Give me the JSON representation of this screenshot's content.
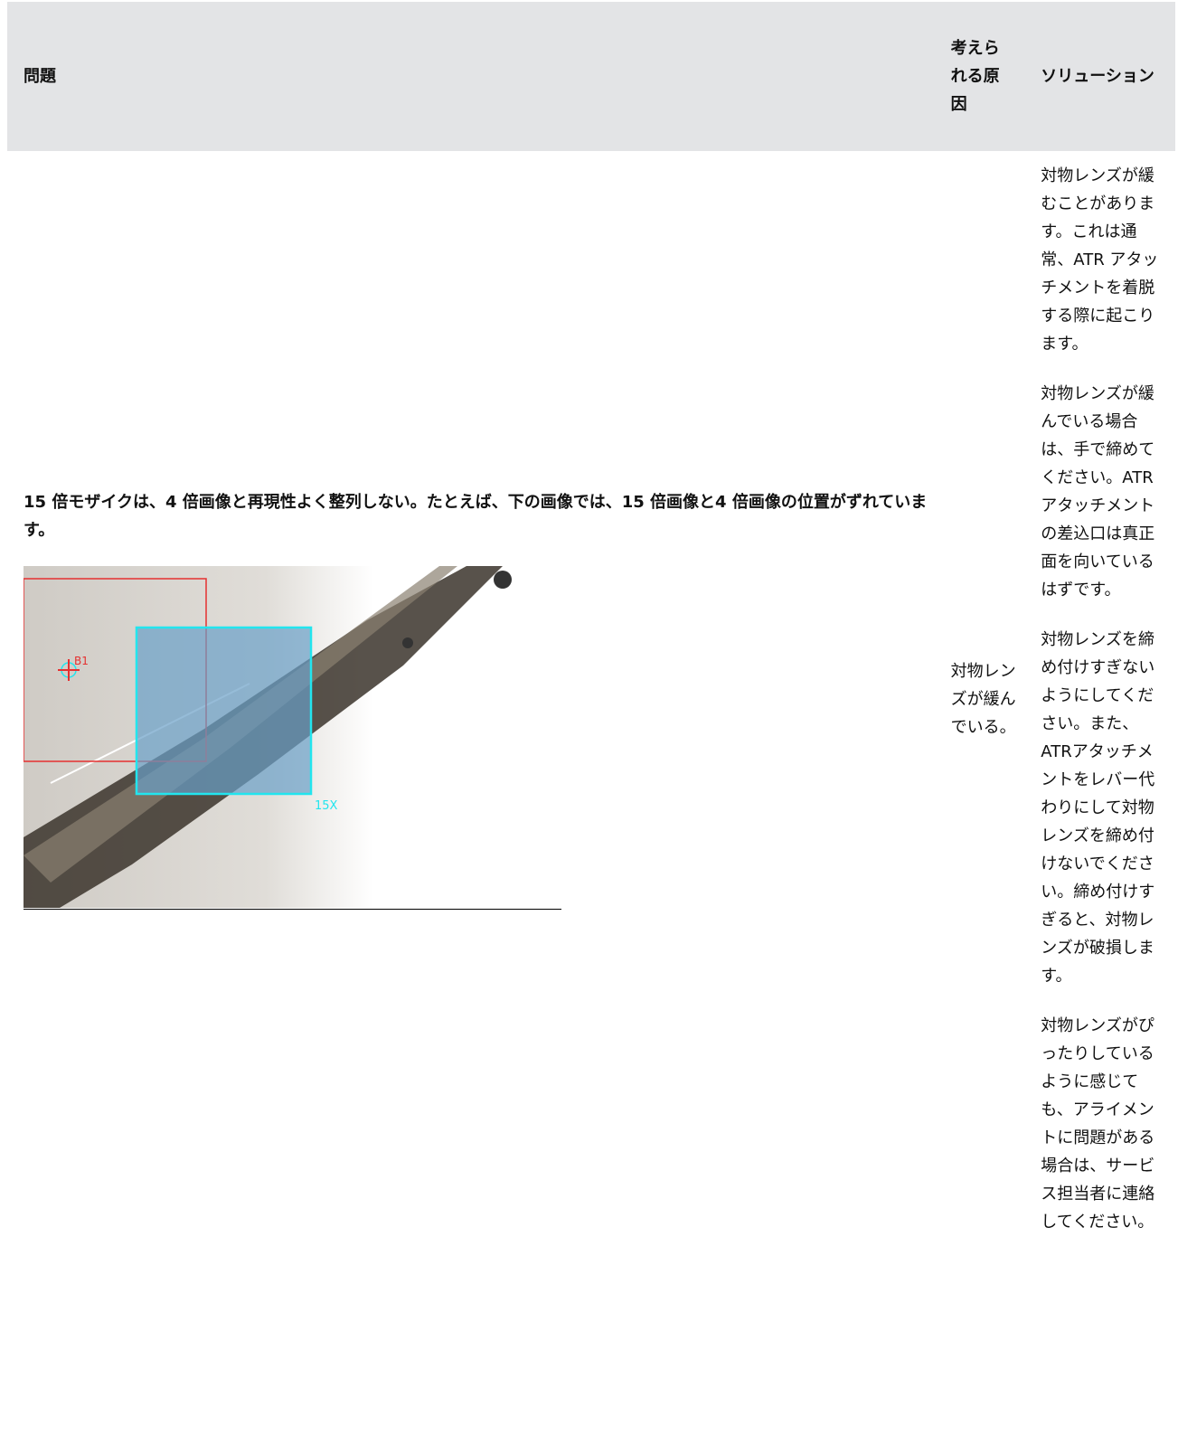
{
  "header": {
    "problem": "問題",
    "cause": "考えられる原因",
    "solution": "ソリューション"
  },
  "rows": [
    {
      "problem": "15 倍モザイクは、4 倍画像と再現性よく整列しない。たとえば、下の画像では、15 倍画像と4 倍画像の位置がずれています。",
      "image": {
        "marker_label": "B1",
        "overlay_label": "15X"
      },
      "cause": "対物レンズが緩んでいる。",
      "solutions": [
        "対物レンズが緩むことがあります。これは通常、ATR アタッチメントを着脱する際に起こります。",
        "対物レンズが緩んでいる場合は、手で締めてください。ATRアタッチメントの差込口は真正面を向いているはずです。",
        "対物レンズを締め付けすぎないようにしてください。また、ATRアタッチメントをレバー代わりにして対物レンズを締め付けないでください。締め付けすぎると、対物レンズが破損します。",
        "対物レンズがぴったりしているように感じても、アライメントに問題がある場合は、サービス担当者に連絡してください。"
      ]
    }
  ]
}
